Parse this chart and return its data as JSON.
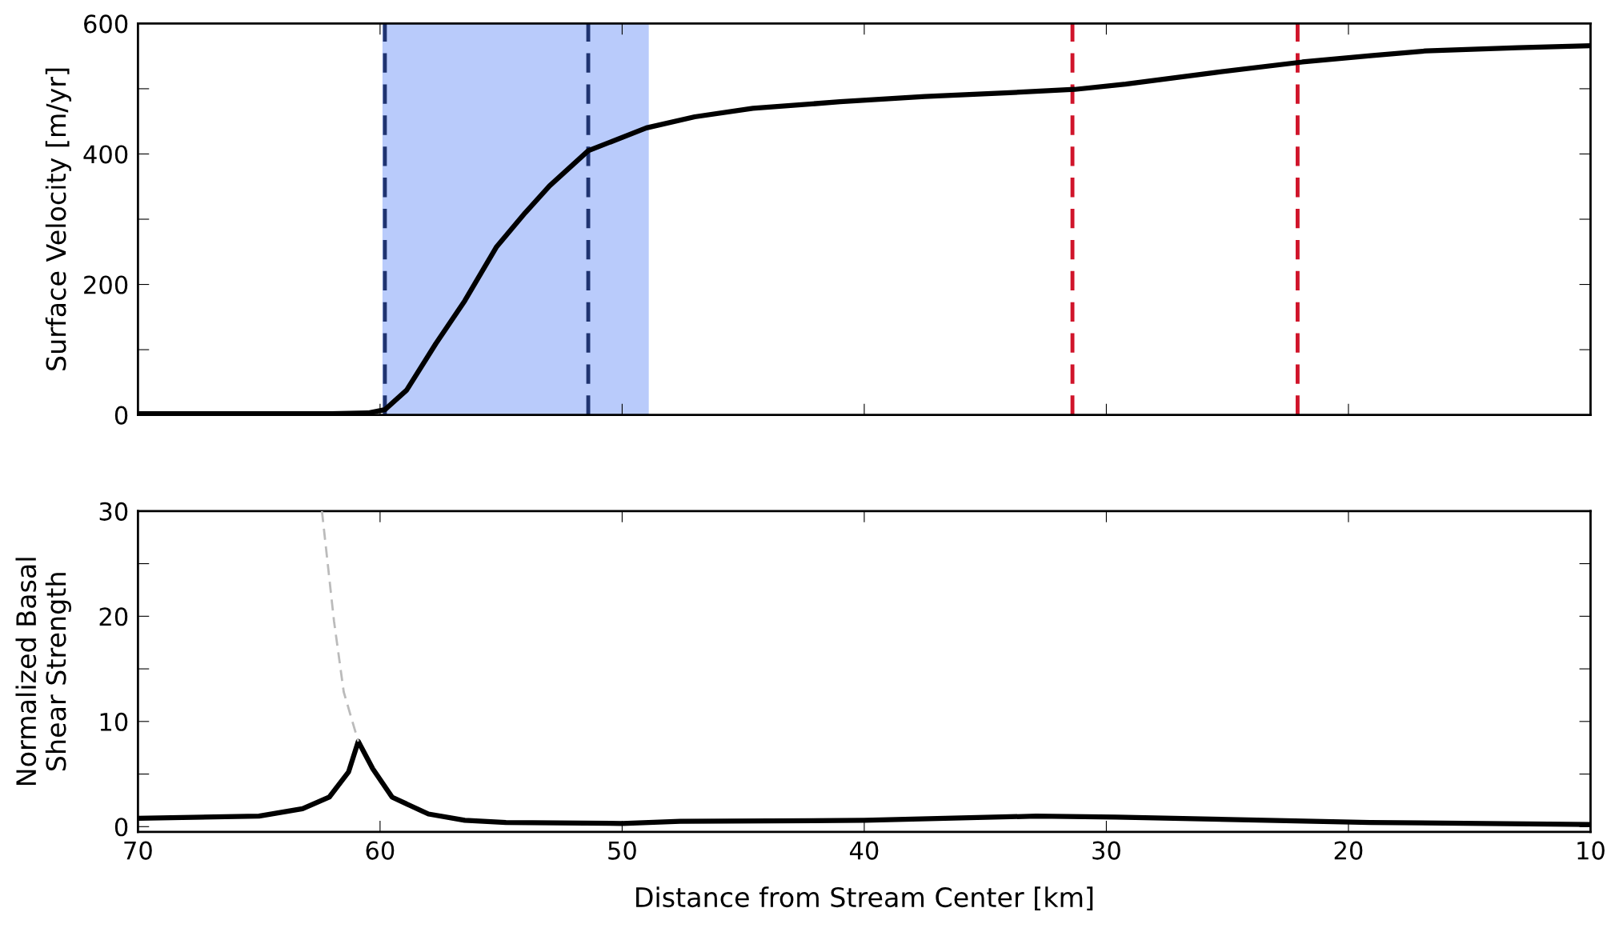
{
  "chart_data": [
    {
      "type": "line",
      "ylabel": "Surface Velocity [m/yr]",
      "xlim": [
        70,
        10
      ],
      "xticks": [
        {
          "value": 70,
          "label": null
        },
        {
          "value": 60,
          "label": null
        },
        {
          "value": 50,
          "label": null
        },
        {
          "value": 40,
          "label": null
        },
        {
          "value": 30,
          "label": null
        },
        {
          "value": 20,
          "label": null
        },
        {
          "value": 10,
          "label": null
        }
      ],
      "ylim": [
        0,
        600
      ],
      "yticks": [
        0,
        {
          "value": 100,
          "label": null
        },
        200,
        {
          "value": 300,
          "label": null
        },
        400,
        {
          "value": 500,
          "label": null
        },
        600
      ],
      "tick_labels": "y",
      "grid": false,
      "legend": false,
      "series": [
        {
          "color": "#000000",
          "x": [
            70,
            65,
            62,
            60.5,
            59.8,
            58.9,
            57.7,
            56.5,
            55.2,
            54,
            53.0,
            51.4,
            49.0,
            47,
            44.6,
            41,
            37.5,
            34,
            31.3,
            29.2,
            25.5,
            21.9,
            19,
            16.8,
            13,
            10
          ],
          "values": [
            2,
            2,
            2,
            3,
            8,
            38,
            109,
            175,
            257,
            310,
            351,
            405,
            440,
            457,
            470,
            480,
            488,
            494,
            499,
            507,
            525,
            541,
            551,
            558,
            563,
            566
          ]
        }
      ],
      "bands": [
        {
          "axis": "x",
          "from": 59.9,
          "to": 48.9,
          "color": "#b9cbfb"
        }
      ],
      "ref_lines": [
        {
          "axis": "x",
          "value": 59.8,
          "color": "#1f3370",
          "line_style": "dashed"
        },
        {
          "axis": "x",
          "value": 51.4,
          "color": "#1f3370",
          "line_style": "dashed"
        },
        {
          "axis": "x",
          "value": 31.4,
          "color": "#d0142a",
          "line_style": "dashed"
        },
        {
          "axis": "x",
          "value": 22.1,
          "color": "#d0142a",
          "line_style": "dashed"
        }
      ]
    },
    {
      "type": "line",
      "xlabel": "Distance from Stream Center [km]",
      "ylabel": "Normalized Basal\nShear Strength",
      "xlim": [
        70,
        10
      ],
      "xticks": [
        70,
        60,
        50,
        40,
        30,
        20,
        10
      ],
      "ylim": [
        -0.5,
        30
      ],
      "yticks": [
        0,
        {
          "value": 5,
          "label": null
        },
        10,
        {
          "value": 15,
          "label": null
        },
        20,
        {
          "value": 25,
          "label": null
        },
        30
      ],
      "grid": false,
      "legend": false,
      "series": [
        {
          "color": "#000000",
          "x": [
            70,
            65,
            63.2,
            62.1,
            61.3,
            60.9,
            60.3,
            59.5,
            58.0,
            56.5,
            54.8,
            50.0,
            47.6,
            40,
            32.9,
            29.6,
            19.1,
            10.1
          ],
          "values": [
            0.8,
            1.0,
            1.7,
            2.8,
            5.2,
            8.1,
            5.5,
            2.8,
            1.2,
            0.6,
            0.4,
            0.3,
            0.5,
            0.6,
            1.0,
            0.9,
            0.4,
            0.2
          ]
        },
        {
          "color": "#bbbbbb",
          "line_style": "dashed",
          "x": [
            62.4,
            61.9,
            61.5,
            60.9
          ],
          "values": [
            30,
            19.5,
            12.8,
            8.1
          ]
        }
      ]
    }
  ]
}
